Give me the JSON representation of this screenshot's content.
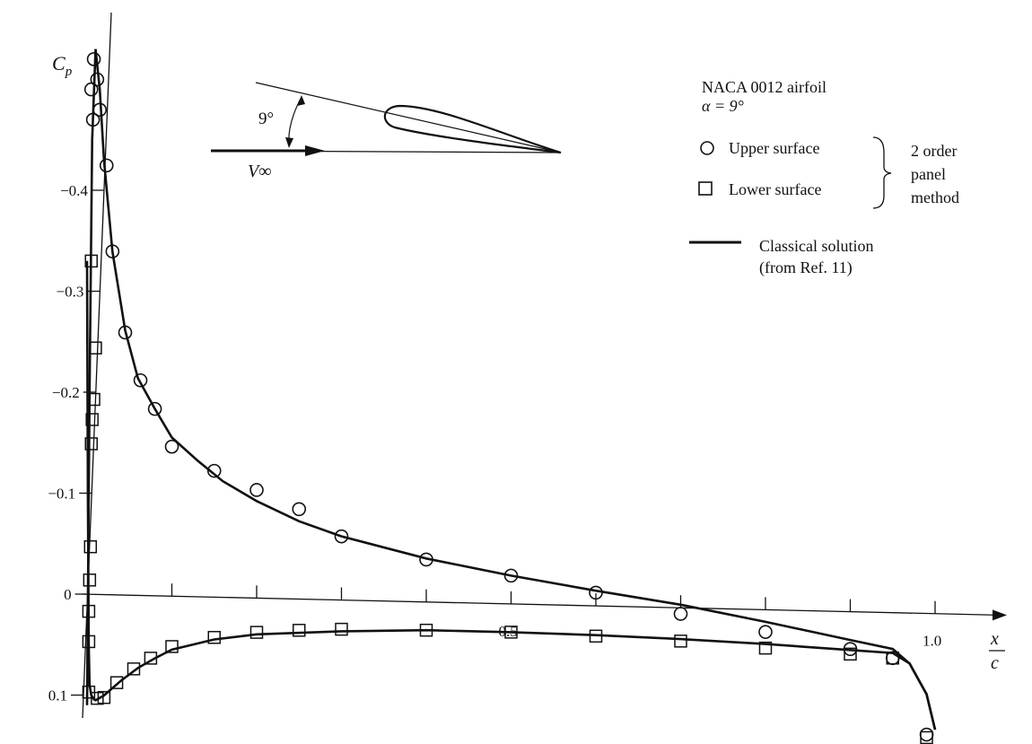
{
  "chart_data": {
    "type": "scatter",
    "title": "",
    "xlabel": {
      "num": "x",
      "den": "c"
    },
    "ylabel": {
      "main": "C",
      "sub": "p"
    },
    "xlim": [
      0,
      1.0
    ],
    "ylim": [
      -0.55,
      0.12
    ],
    "y_inverted": true,
    "x_ticks": [
      0.5,
      1.0
    ],
    "x_tick_labels": [
      "0.5",
      "1.0"
    ],
    "x_minor_ticks": [
      0.1,
      0.2,
      0.3,
      0.4,
      0.5,
      0.6,
      0.7,
      0.8,
      0.9,
      1.0
    ],
    "y_ticks": [
      -0.4,
      -0.3,
      -0.2,
      -0.1,
      0,
      0.1
    ],
    "y_tick_labels": [
      "−0.4",
      "−0.3",
      "−0.2",
      "−0.1",
      "0",
      "0.1"
    ],
    "grid": false,
    "legend_position": "top-right",
    "legend": {
      "header": [
        "NACA 0012 airfoil",
        "α  =  9°"
      ],
      "upper_label": "Upper surface",
      "lower_label": "Lower surface",
      "method": [
        "2 order",
        "panel",
        "method"
      ],
      "classical": [
        "Classical solution",
        "(from Ref. 11)"
      ]
    },
    "inset": {
      "angle_label": "9°",
      "velocity_label": "V∞"
    },
    "series": [
      {
        "name": "Upper surface",
        "marker": "circle",
        "x": [
          0.008,
          0.005,
          0.007,
          0.012,
          0.015,
          0.023,
          0.03,
          0.045,
          0.063,
          0.08,
          0.1,
          0.15,
          0.2,
          0.25,
          0.3,
          0.4,
          0.5,
          0.6,
          0.7,
          0.8,
          0.9,
          0.95,
          0.99
        ],
        "y": [
          -0.53,
          -0.5,
          -0.47,
          -0.51,
          -0.48,
          -0.425,
          -0.34,
          -0.26,
          -0.213,
          -0.185,
          -0.148,
          -0.125,
          -0.107,
          -0.089,
          -0.063,
          -0.042,
          -0.028,
          -0.013,
          0.006,
          0.022,
          0.037,
          0.045,
          0.12
        ]
      },
      {
        "name": "Lower surface",
        "marker": "square",
        "x": [
          0.002,
          0.002,
          0.002,
          0.003,
          0.004,
          0.005,
          0.006,
          0.008,
          0.01,
          0.005,
          0.012,
          0.02,
          0.035,
          0.055,
          0.075,
          0.1,
          0.15,
          0.2,
          0.25,
          0.3,
          0.4,
          0.5,
          0.6,
          0.7,
          0.8,
          0.9,
          0.95,
          0.99
        ],
        "y": [
          0.097,
          0.047,
          0.017,
          -0.014,
          -0.047,
          -0.149,
          -0.173,
          -0.193,
          -0.244,
          -0.33,
          0.103,
          0.102,
          0.087,
          0.073,
          0.062,
          0.05,
          0.04,
          0.034,
          0.031,
          0.029,
          0.028,
          0.028,
          0.03,
          0.033,
          0.038,
          0.042,
          0.045,
          0.123
        ]
      },
      {
        "name": "Classical solution",
        "marker": "line",
        "upper_x": [
          0.0,
          0.003,
          0.006,
          0.01,
          0.015,
          0.02,
          0.03,
          0.045,
          0.06,
          0.08,
          0.1,
          0.13,
          0.16,
          0.2,
          0.25,
          0.3,
          0.4,
          0.5,
          0.6,
          0.7,
          0.8,
          0.9,
          0.95,
          0.97,
          0.99,
          1.0
        ],
        "upper_y": [
          0.11,
          -0.2,
          -0.45,
          -0.54,
          -0.5,
          -0.43,
          -0.34,
          -0.262,
          -0.215,
          -0.185,
          -0.157,
          -0.135,
          -0.115,
          -0.096,
          -0.077,
          -0.063,
          -0.043,
          -0.028,
          -0.015,
          -0.003,
          0.012,
          0.028,
          0.036,
          0.05,
          0.08,
          0.115
        ],
        "lower_x": [
          0.0,
          0.001,
          0.002,
          0.003,
          0.005,
          0.008,
          0.01,
          0.02,
          0.04,
          0.06,
          0.08,
          0.1,
          0.15,
          0.2,
          0.3,
          0.4,
          0.5,
          0.6,
          0.7,
          0.8,
          0.9,
          0.95,
          0.97,
          0.99,
          1.0
        ],
        "lower_y": [
          -0.33,
          -0.1,
          0.05,
          0.09,
          0.1,
          0.104,
          0.105,
          0.1,
          0.085,
          0.072,
          0.062,
          0.053,
          0.042,
          0.036,
          0.031,
          0.028,
          0.028,
          0.029,
          0.031,
          0.034,
          0.038,
          0.04,
          0.05,
          0.08,
          0.115
        ]
      }
    ]
  }
}
